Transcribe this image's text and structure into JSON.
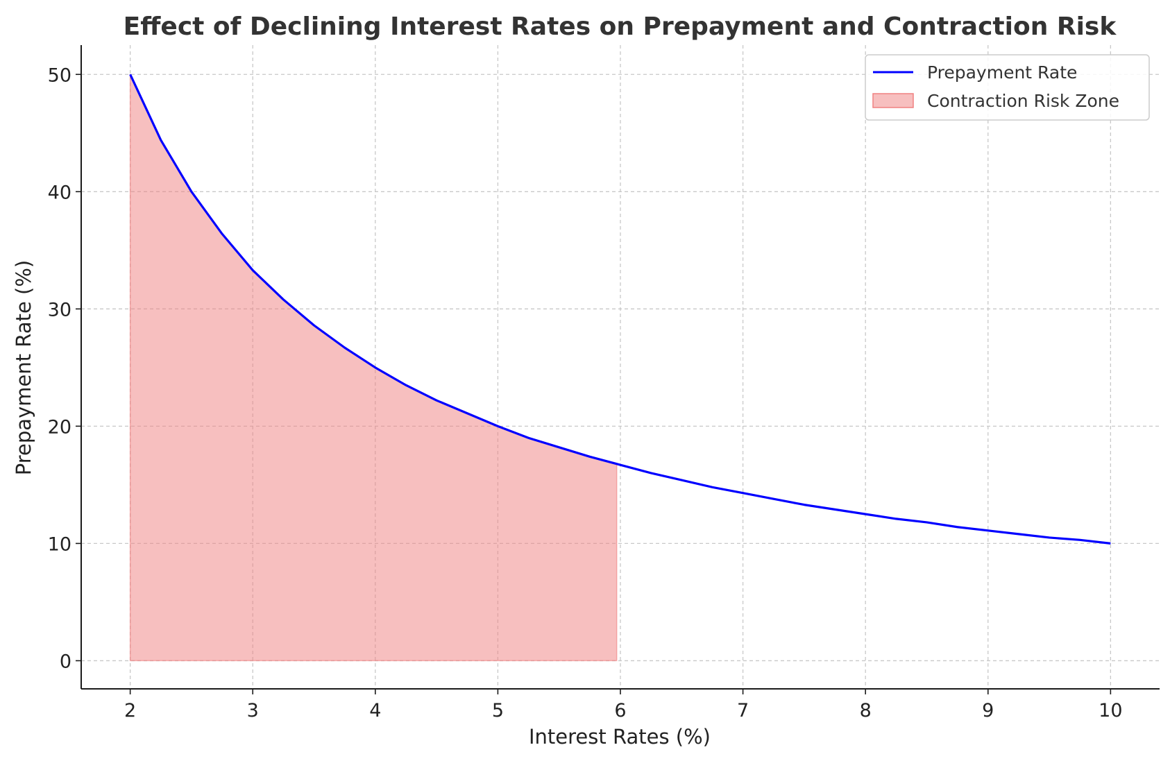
{
  "chart_data": {
    "type": "line",
    "title": "Effect of Declining Interest Rates on Prepayment and Contraction Risk",
    "xlabel": "Interest Rates (%)",
    "ylabel": "Prepayment Rate (%)",
    "xlim": [
      1.6,
      10.4
    ],
    "ylim": [
      -2.4,
      52.5
    ],
    "x_ticks": [
      2,
      3,
      4,
      5,
      6,
      7,
      8,
      9,
      10
    ],
    "y_ticks": [
      0,
      10,
      20,
      30,
      40,
      50
    ],
    "grid": true,
    "legend_position": "top-right",
    "series": [
      {
        "name": "Prepayment Rate",
        "color": "#0000ff",
        "x": [
          2.0,
          2.25,
          2.5,
          2.75,
          3.0,
          3.25,
          3.5,
          3.75,
          4.0,
          4.25,
          4.5,
          4.75,
          5.0,
          5.25,
          5.5,
          5.75,
          6.0,
          6.25,
          6.5,
          6.75,
          7.0,
          7.25,
          7.5,
          7.75,
          8.0,
          8.25,
          8.5,
          8.75,
          9.0,
          9.25,
          9.5,
          9.75,
          10.0
        ],
        "y": [
          50.0,
          44.4,
          40.0,
          36.4,
          33.3,
          30.8,
          28.6,
          26.7,
          25.0,
          23.5,
          22.2,
          21.1,
          20.0,
          19.0,
          18.2,
          17.4,
          16.7,
          16.0,
          15.4,
          14.8,
          14.3,
          13.8,
          13.3,
          12.9,
          12.5,
          12.1,
          11.8,
          11.4,
          11.1,
          10.8,
          10.5,
          10.3,
          10.0
        ]
      }
    ],
    "shaded_region": {
      "name": "Contraction Risk Zone",
      "color": "#f08080",
      "x_start": 2.0,
      "x_end": 5.97
    }
  }
}
